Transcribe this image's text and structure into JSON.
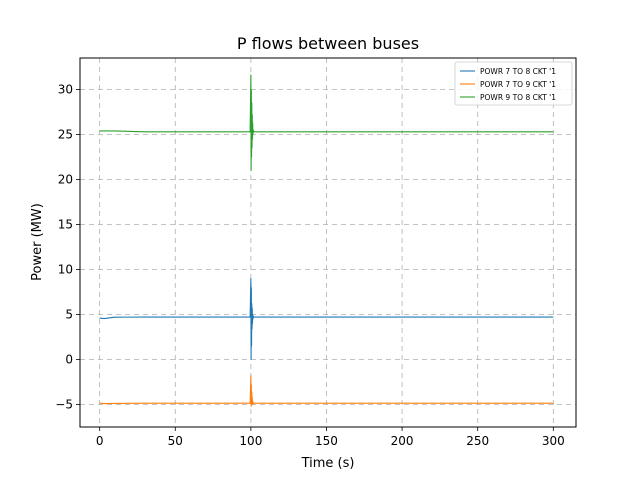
{
  "chart_data": {
    "type": "line",
    "title": "P flows between buses",
    "xlabel": "Time (s)",
    "ylabel": "Power (MW)",
    "xlim": [
      -13,
      315
    ],
    "ylim": [
      -7.5,
      33.5
    ],
    "xticks": [
      0,
      50,
      100,
      150,
      200,
      250,
      300
    ],
    "yticks": [
      -5,
      0,
      5,
      10,
      15,
      20,
      25,
      30
    ],
    "ytick_labels": [
      "−5",
      "0",
      "5",
      "10",
      "15",
      "20",
      "25",
      "30"
    ],
    "grid": true,
    "grid_style": "dashed",
    "legend_position": "top-right",
    "series": [
      {
        "name": "POWR 7 TO 8 CKT '1",
        "color": "#1f77b4",
        "x": [
          0,
          3,
          10,
          30,
          60,
          99.5,
          100,
          100.15,
          100.3,
          100.45,
          100.6,
          100.75,
          100.9,
          101.05,
          101.2,
          101.35,
          101.6,
          102,
          130,
          200,
          250,
          300
        ],
        "y": [
          4.6,
          4.55,
          4.7,
          4.72,
          4.72,
          4.72,
          9.0,
          0.0,
          8.0,
          1.5,
          6.2,
          3.4,
          5.7,
          4.0,
          5.0,
          4.5,
          4.8,
          4.72,
          4.72,
          4.72,
          4.72,
          4.72
        ]
      },
      {
        "name": "POWR 7 TO 9 CKT '1",
        "color": "#ff7f0e",
        "x": [
          0,
          3,
          10,
          30,
          60,
          99.5,
          100,
          100.15,
          100.3,
          100.45,
          100.6,
          100.75,
          100.9,
          101.05,
          101.2,
          101.4,
          102,
          130,
          200,
          250,
          300
        ],
        "y": [
          -4.85,
          -4.9,
          -4.88,
          -4.85,
          -4.85,
          -4.85,
          -1.8,
          -5.2,
          -2.8,
          -5.0,
          -3.6,
          -4.9,
          -4.2,
          -5.0,
          -4.6,
          -4.9,
          -4.85,
          -4.85,
          -4.85,
          -4.85,
          -4.85
        ]
      },
      {
        "name": "POWR 9 TO 8 CKT '1",
        "color": "#2ca02c",
        "x": [
          0,
          10,
          30,
          60,
          99.5,
          100,
          100.15,
          100.3,
          100.45,
          100.6,
          100.75,
          100.9,
          101.05,
          101.2,
          101.35,
          101.6,
          102,
          130,
          200,
          250,
          300
        ],
        "y": [
          25.4,
          25.4,
          25.3,
          25.3,
          25.3,
          31.6,
          21.0,
          30.0,
          22.5,
          28.5,
          23.5,
          27.2,
          24.5,
          26.3,
          25.0,
          25.5,
          25.3,
          25.3,
          25.3,
          25.3,
          25.3
        ]
      }
    ]
  }
}
